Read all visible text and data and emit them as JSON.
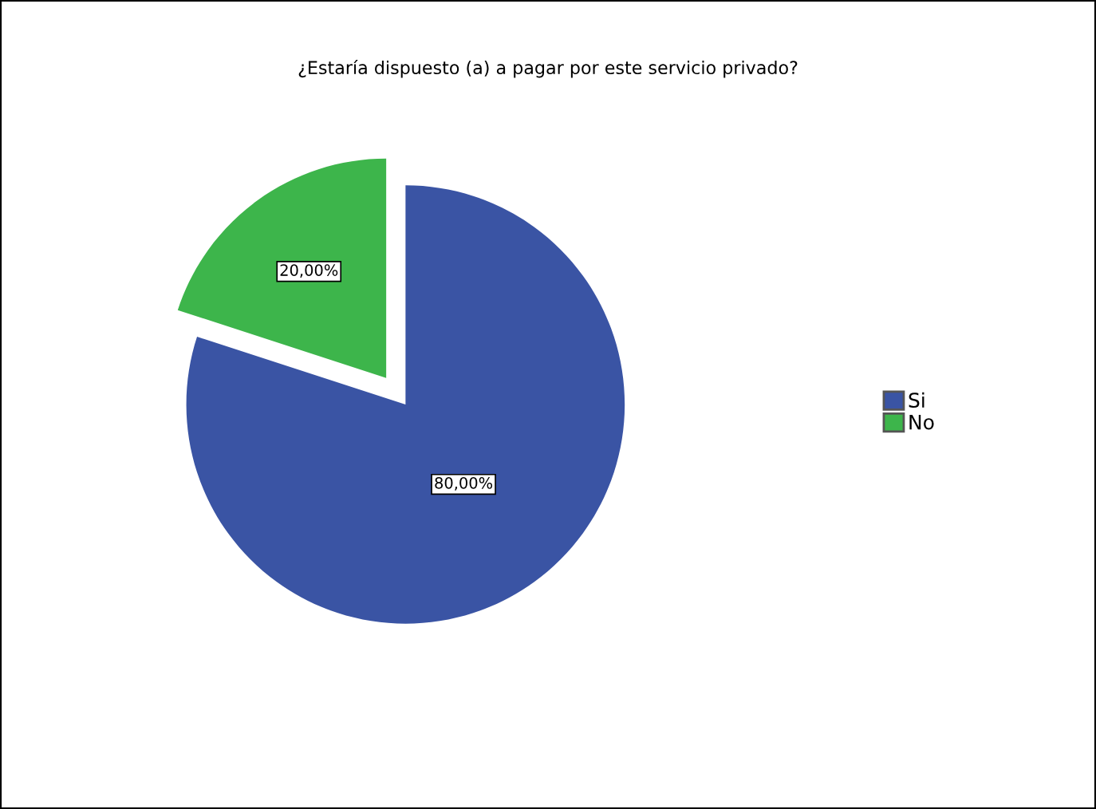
{
  "chart_data": {
    "type": "pie",
    "title": "¿Estaría dispuesto (a) a pagar por este servicio privado?",
    "categories": [
      "Si",
      "No"
    ],
    "values": [
      80,
      20
    ],
    "colors": [
      "#3a54a4",
      "#3db54b"
    ],
    "value_labels": [
      "80,00%",
      "20,00%"
    ],
    "legend": "right"
  }
}
